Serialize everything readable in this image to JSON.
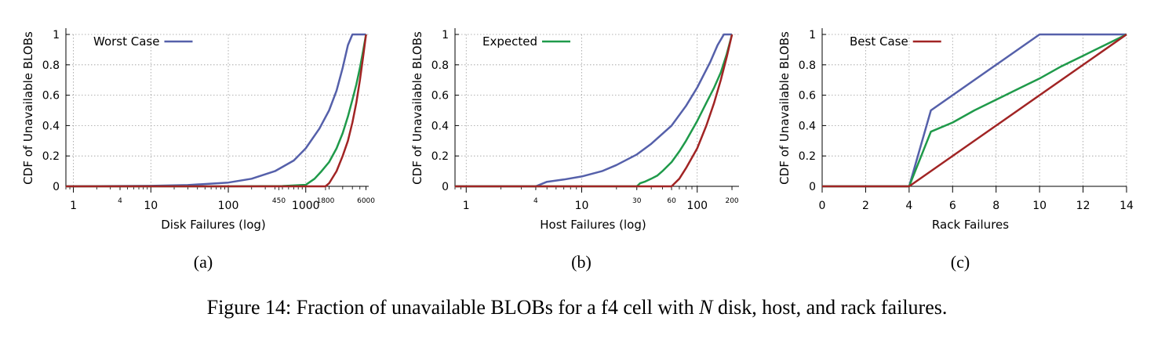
{
  "caption": {
    "prefix": "Figure 14: Fraction of unavailable BLOBs for a f4 cell with ",
    "variable": "N",
    "suffix": " disk, host, and rack failures."
  },
  "colors": {
    "worst": "#5560aa",
    "expected": "#1f9a4a",
    "best": "#a12424",
    "grid": "#9a9a9a"
  },
  "chart_data": [
    {
      "type": "line",
      "sublabel": "(a)",
      "xlabel": "Disk Failures (log)",
      "ylabel": "CDF of Unavailable BLOBs",
      "xscale": "log",
      "xlim": [
        0.8,
        6500
      ],
      "ylim": [
        0,
        1
      ],
      "grid": true,
      "xticks_major": [
        1,
        10,
        100,
        1000
      ],
      "xtick_labels_major": [
        "1",
        "10",
        "100",
        "1000"
      ],
      "xticks_minor_labeled": [
        4,
        450,
        1800,
        6000
      ],
      "xtick_labels_minor": [
        "4",
        "450",
        "1800",
        "6000"
      ],
      "yticks": [
        0,
        0.2,
        0.4,
        0.6,
        0.8,
        1
      ],
      "ytick_labels": [
        "0",
        "0.2",
        "0.4",
        "0.6",
        "0.8",
        "1"
      ],
      "legend": {
        "label": "Worst Case",
        "series_index": 0,
        "position": "top-left"
      },
      "series": [
        {
          "name": "Worst Case",
          "color_key": "worst",
          "x": [
            0.8,
            10,
            30,
            100,
            200,
            400,
            700,
            1000,
            1500,
            2000,
            2500,
            3000,
            3500,
            4000,
            4500,
            6000
          ],
          "y": [
            0,
            0.003,
            0.008,
            0.025,
            0.05,
            0.1,
            0.17,
            0.25,
            0.38,
            0.5,
            0.63,
            0.78,
            0.93,
            1.0,
            1.0,
            1.0
          ]
        },
        {
          "name": "",
          "color_key": "expected",
          "x": [
            0.8,
            100,
            500,
            1000,
            1300,
            1600,
            2000,
            2500,
            3000,
            3500,
            4000,
            4500,
            5000,
            5500,
            6000
          ],
          "y": [
            0,
            0,
            0.002,
            0.01,
            0.05,
            0.1,
            0.16,
            0.25,
            0.35,
            0.46,
            0.57,
            0.67,
            0.78,
            0.89,
            1.0
          ]
        },
        {
          "name": "",
          "color_key": "best",
          "x": [
            0.8,
            1800,
            2000,
            2500,
            3000,
            3500,
            4000,
            4500,
            5000,
            5500,
            6000
          ],
          "y": [
            0,
            0,
            0.02,
            0.1,
            0.2,
            0.3,
            0.42,
            0.55,
            0.7,
            0.85,
            1.0
          ]
        }
      ]
    },
    {
      "type": "line",
      "sublabel": "(b)",
      "xlabel": "Host Failures (log)",
      "ylabel": "CDF of Unavailable BLOBs",
      "xscale": "log",
      "xlim": [
        0.8,
        230
      ],
      "ylim": [
        0,
        1
      ],
      "grid": true,
      "xticks_major": [
        1,
        10,
        100
      ],
      "xtick_labels_major": [
        "1",
        "10",
        "100"
      ],
      "xticks_minor_labeled": [
        4,
        30,
        60,
        200
      ],
      "xtick_labels_minor": [
        "4",
        "30",
        "60",
        "200"
      ],
      "yticks": [
        0,
        0.2,
        0.4,
        0.6,
        0.8,
        1
      ],
      "ytick_labels": [
        "0",
        "0.2",
        "0.4",
        "0.6",
        "0.8",
        "1"
      ],
      "legend": {
        "label": "Expected",
        "series_index": 1,
        "position": "top-left"
      },
      "series": [
        {
          "name": "",
          "color_key": "worst",
          "x": [
            0.8,
            4,
            5,
            7,
            10,
            15,
            20,
            30,
            40,
            60,
            80,
            100,
            130,
            150,
            170,
            200
          ],
          "y": [
            0,
            0,
            0.03,
            0.045,
            0.065,
            0.1,
            0.14,
            0.21,
            0.28,
            0.4,
            0.53,
            0.65,
            0.82,
            0.93,
            1.0,
            1.0
          ]
        },
        {
          "name": "Expected",
          "color_key": "expected",
          "x": [
            0.8,
            30,
            32,
            35,
            40,
            45,
            50,
            60,
            70,
            80,
            100,
            120,
            140,
            160,
            180,
            200
          ],
          "y": [
            0,
            0,
            0.02,
            0.03,
            0.05,
            0.07,
            0.1,
            0.16,
            0.23,
            0.3,
            0.43,
            0.55,
            0.65,
            0.75,
            0.87,
            1.0
          ]
        },
        {
          "name": "",
          "color_key": "best",
          "x": [
            0.8,
            60,
            70,
            80,
            100,
            120,
            140,
            160,
            180,
            200
          ],
          "y": [
            0,
            0,
            0.05,
            0.12,
            0.25,
            0.4,
            0.55,
            0.7,
            0.85,
            1.0
          ]
        }
      ]
    },
    {
      "type": "line",
      "sublabel": "(c)",
      "xlabel": "Rack Failures",
      "ylabel": "CDF of Unavailable BLOBs",
      "xscale": "linear",
      "xlim": [
        0,
        14
      ],
      "ylim": [
        0,
        1
      ],
      "grid": true,
      "xticks_major": [
        0,
        2,
        4,
        6,
        8,
        10,
        12,
        14
      ],
      "xtick_labels_major": [
        "0",
        "2",
        "4",
        "6",
        "8",
        "10",
        "12",
        "14"
      ],
      "xticks_minor_labeled": [],
      "xtick_labels_minor": [],
      "yticks": [
        0,
        0.2,
        0.4,
        0.6,
        0.8,
        1
      ],
      "ytick_labels": [
        "0",
        "0.2",
        "0.4",
        "0.6",
        "0.8",
        "1"
      ],
      "legend": {
        "label": "Best Case",
        "series_index": 2,
        "position": "top-left"
      },
      "series": [
        {
          "name": "",
          "color_key": "worst",
          "x": [
            0,
            4,
            5,
            10,
            14
          ],
          "y": [
            0,
            0,
            0.5,
            1.0,
            1.0
          ]
        },
        {
          "name": "",
          "color_key": "expected",
          "x": [
            0,
            4,
            5,
            6,
            7,
            8,
            9,
            10,
            11,
            12,
            13,
            14
          ],
          "y": [
            0,
            0,
            0.36,
            0.42,
            0.5,
            0.57,
            0.64,
            0.71,
            0.79,
            0.86,
            0.93,
            1.0
          ]
        },
        {
          "name": "Best Case",
          "color_key": "best",
          "x": [
            0,
            4,
            14
          ],
          "y": [
            0,
            0,
            1.0
          ]
        }
      ]
    }
  ]
}
